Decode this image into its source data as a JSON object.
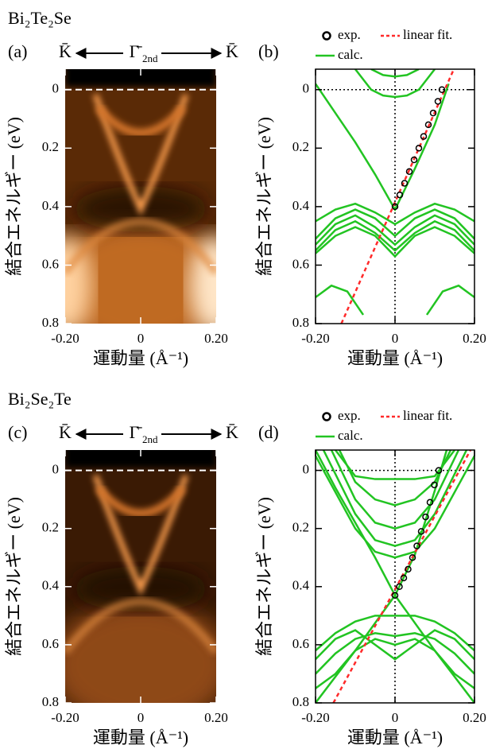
{
  "chart_data": [
    {
      "type": "heatmap",
      "title": "Bi₂Te₂Se",
      "label": "(a)",
      "annotations": {
        "left": "K̄",
        "center": "Γ̄",
        "center_sub": "2nd",
        "right": "K̄"
      },
      "xlabel": "運動量 (Å⁻¹)",
      "ylabel": "結合エネルギー (eV)",
      "xlim": [
        -0.2,
        0.2
      ],
      "ylim": [
        0.8,
        -0.07
      ],
      "xticks": [
        {
          "value": -0.2,
          "label": "-0.20"
        },
        0,
        {
          "value": 0.2,
          "label": "0.20"
        }
      ],
      "yticks": [
        0,
        0.2,
        0.4,
        0.6,
        0.8
      ],
      "fermi_line": true
    },
    {
      "type": "line",
      "label": "(b)",
      "xlabel": "運動量 (Å⁻¹)",
      "ylabel": "結合エネルギー (eV)",
      "xlim": [
        -0.2,
        0.2
      ],
      "ylim": [
        0.8,
        -0.07
      ],
      "xticks": [
        {
          "value": -0.2,
          "label": "-0.20"
        },
        0,
        {
          "value": 0.2,
          "label": "0.20"
        }
      ],
      "yticks": [
        0,
        0.2,
        0.4,
        0.6,
        0.8
      ],
      "zero_lines": true,
      "series": [
        {
          "name": "exp.",
          "color": "#000000",
          "style": "markers",
          "x": [
            0,
            0.012,
            0.024,
            0.036,
            0.048,
            0.06,
            0.072,
            0.084,
            0.096,
            0.108,
            0.118
          ],
          "values": [
            0.4,
            0.36,
            0.32,
            0.28,
            0.24,
            0.2,
            0.16,
            0.12,
            0.08,
            0.04,
            0.0
          ]
        },
        {
          "name": "linear fit.",
          "color": "#ff2a2a",
          "style": "dashed",
          "x": [
            -0.135,
            0.148
          ],
          "values": [
            0.8,
            -0.07
          ]
        },
        {
          "name": "calc.",
          "color": "#22c422",
          "style": "line",
          "x": [
            -0.2,
            -0.15,
            -0.1,
            -0.05,
            0,
            0.05,
            0.1,
            0.135
          ],
          "values": [
            -0.02,
            0.08,
            0.18,
            0.29,
            0.41,
            0.27,
            0.12,
            -0.02
          ]
        },
        {
          "color": "#22c422",
          "style": "line",
          "x": [
            -0.1,
            -0.06,
            -0.03,
            0,
            0.03,
            0.06,
            0.1
          ],
          "values": [
            -0.07,
            0.0,
            0.02,
            0.025,
            0.02,
            0.0,
            -0.07
          ]
        },
        {
          "color": "#22c422",
          "style": "line",
          "x": [
            -0.06,
            -0.03,
            0,
            0.03,
            0.06
          ],
          "values": [
            -0.07,
            -0.05,
            -0.045,
            -0.05,
            -0.07
          ]
        },
        {
          "color": "#22c422",
          "style": "line",
          "x": [
            -0.2,
            -0.15,
            -0.1,
            -0.05,
            0,
            0.05,
            0.1,
            0.15,
            0.2
          ],
          "values": [
            0.55,
            0.48,
            0.45,
            0.49,
            0.55,
            0.49,
            0.45,
            0.48,
            0.55
          ]
        },
        {
          "color": "#22c422",
          "style": "line",
          "x": [
            -0.2,
            -0.15,
            -0.1,
            -0.05,
            0,
            0.05,
            0.1,
            0.15,
            0.2
          ],
          "values": [
            0.53,
            0.46,
            0.43,
            0.47,
            0.53,
            0.47,
            0.43,
            0.46,
            0.53
          ]
        },
        {
          "color": "#22c422",
          "style": "line",
          "x": [
            -0.2,
            -0.15,
            -0.1,
            -0.05,
            0,
            0.05,
            0.1,
            0.15,
            0.2
          ],
          "values": [
            0.51,
            0.44,
            0.41,
            0.44,
            0.5,
            0.44,
            0.41,
            0.44,
            0.51
          ]
        },
        {
          "color": "#22c422",
          "style": "line",
          "x": [
            -0.2,
            -0.15,
            -0.1,
            -0.05,
            0,
            0.05,
            0.1,
            0.15,
            0.2
          ],
          "values": [
            0.56,
            0.5,
            0.47,
            0.5,
            0.57,
            0.5,
            0.47,
            0.5,
            0.56
          ]
        },
        {
          "color": "#22c422",
          "style": "line",
          "x": [
            -0.2,
            -0.15,
            -0.1,
            -0.05,
            0,
            0.05,
            0.1,
            0.15,
            0.2
          ],
          "values": [
            0.45,
            0.41,
            0.39,
            0.42,
            0.46,
            0.42,
            0.39,
            0.41,
            0.45
          ]
        },
        {
          "color": "#22c422",
          "style": "line",
          "x": [
            -0.2,
            -0.16,
            -0.12,
            -0.08
          ],
          "values": [
            0.71,
            0.67,
            0.69,
            0.77
          ]
        },
        {
          "color": "#22c422",
          "style": "line",
          "x": [
            0.08,
            0.12,
            0.16,
            0.2
          ],
          "values": [
            0.77,
            0.69,
            0.67,
            0.71
          ]
        }
      ]
    },
    {
      "type": "heatmap",
      "title": "Bi₂Se₂Te",
      "label": "(c)",
      "annotations": {
        "left": "K̄",
        "center": "Γ̄",
        "center_sub": "2nd",
        "right": "K̄"
      },
      "xlabel": "運動量 (Å⁻¹)",
      "ylabel": "結合エネルギー (eV)",
      "xlim": [
        -0.2,
        0.2
      ],
      "ylim": [
        0.8,
        -0.07
      ],
      "xticks": [
        {
          "value": -0.2,
          "label": "-0.20"
        },
        0,
        {
          "value": 0.2,
          "label": "0.20"
        }
      ],
      "yticks": [
        0,
        0.2,
        0.4,
        0.6,
        0.8
      ],
      "fermi_line": true
    },
    {
      "type": "line",
      "label": "(d)",
      "xlabel": "運動量 (Å⁻¹)",
      "ylabel": "結合エネルギー (eV)",
      "xlim": [
        -0.2,
        0.2
      ],
      "ylim": [
        0.8,
        -0.07
      ],
      "xticks": [
        {
          "value": -0.2,
          "label": "-0.20"
        },
        0,
        {
          "value": 0.2,
          "label": "0.20"
        }
      ],
      "yticks": [
        0,
        0.2,
        0.4,
        0.6,
        0.8
      ],
      "zero_lines": true,
      "series": [
        {
          "name": "exp.",
          "color": "#000000",
          "style": "markers",
          "x": [
            0,
            0.011,
            0.022,
            0.033,
            0.044,
            0.055,
            0.066,
            0.077,
            0.088,
            0.099,
            0.11
          ],
          "values": [
            0.43,
            0.4,
            0.37,
            0.34,
            0.3,
            0.26,
            0.21,
            0.16,
            0.11,
            0.05,
            0.0
          ]
        },
        {
          "name": "linear fit.",
          "color": "#ff2a2a",
          "style": "dashed",
          "x": [
            -0.155,
            0.19
          ],
          "values": [
            0.8,
            -0.07
          ]
        },
        {
          "name": "calc.",
          "color": "#22c422",
          "style": "line",
          "x": [
            -0.2,
            -0.15,
            -0.1,
            -0.05,
            0,
            0.05,
            0.1,
            0.13
          ],
          "values": [
            -0.07,
            0.06,
            0.18,
            0.3,
            0.43,
            0.29,
            0.07,
            -0.07
          ]
        },
        {
          "color": "#22c422",
          "style": "line",
          "x": [
            -0.15,
            -0.1,
            -0.05,
            0,
            0.05,
            0.1,
            0.15
          ],
          "values": [
            -0.07,
            0.02,
            0.03,
            0.03,
            0.03,
            0.02,
            -0.07
          ]
        },
        {
          "color": "#22c422",
          "style": "line",
          "x": [
            -0.14,
            -0.1,
            -0.05,
            0,
            0.05,
            0.1,
            0.14
          ],
          "values": [
            -0.07,
            0.04,
            0.1,
            0.12,
            0.1,
            0.04,
            -0.07
          ]
        },
        {
          "color": "#22c422",
          "style": "line",
          "x": [
            -0.16,
            -0.1,
            -0.05,
            0,
            0.05,
            0.1,
            0.16
          ],
          "values": [
            -0.07,
            0.1,
            0.18,
            0.2,
            0.18,
            0.1,
            -0.07
          ]
        },
        {
          "color": "#22c422",
          "style": "line",
          "x": [
            -0.18,
            -0.1,
            -0.05,
            0,
            0.05,
            0.1,
            0.18
          ],
          "values": [
            -0.07,
            0.15,
            0.24,
            0.26,
            0.24,
            0.15,
            -0.07
          ]
        },
        {
          "color": "#22c422",
          "style": "line",
          "x": [
            -0.2,
            -0.1,
            -0.05,
            0,
            0.05,
            0.1,
            0.2
          ],
          "values": [
            -0.05,
            0.2,
            0.28,
            0.3,
            0.28,
            0.2,
            -0.05
          ]
        },
        {
          "color": "#22c422",
          "style": "line",
          "x": [
            -0.2,
            -0.15,
            -0.1,
            -0.05,
            0,
            0.05,
            0.1,
            0.15,
            0.2
          ],
          "values": [
            0.62,
            0.56,
            0.52,
            0.5,
            0.5,
            0.5,
            0.52,
            0.56,
            0.62
          ]
        },
        {
          "color": "#22c422",
          "style": "line",
          "x": [
            -0.2,
            -0.15,
            -0.1,
            -0.05,
            0,
            0.05,
            0.1,
            0.15,
            0.2
          ],
          "values": [
            0.65,
            0.58,
            0.55,
            0.6,
            0.65,
            0.6,
            0.55,
            0.58,
            0.65
          ]
        },
        {
          "color": "#22c422",
          "style": "line",
          "x": [
            -0.2,
            -0.15,
            -0.1,
            -0.05,
            0,
            0.05,
            0.1,
            0.15,
            0.2
          ],
          "values": [
            0.7,
            0.63,
            0.58,
            0.56,
            0.57,
            0.56,
            0.58,
            0.63,
            0.7
          ]
        },
        {
          "color": "#22c422",
          "style": "line",
          "x": [
            -0.2,
            -0.15,
            -0.1,
            -0.05,
            0,
            0.05,
            0.1,
            0.15,
            0.2
          ],
          "values": [
            0.75,
            0.7,
            0.62,
            0.58,
            0.6,
            0.58,
            0.62,
            0.7,
            0.75
          ]
        },
        {
          "color": "#22c422",
          "style": "line",
          "x": [
            -0.2,
            -0.1,
            0,
            0.1,
            0.2
          ],
          "values": [
            0.8,
            0.62,
            0.43,
            0.62,
            0.8
          ]
        }
      ]
    }
  ]
}
